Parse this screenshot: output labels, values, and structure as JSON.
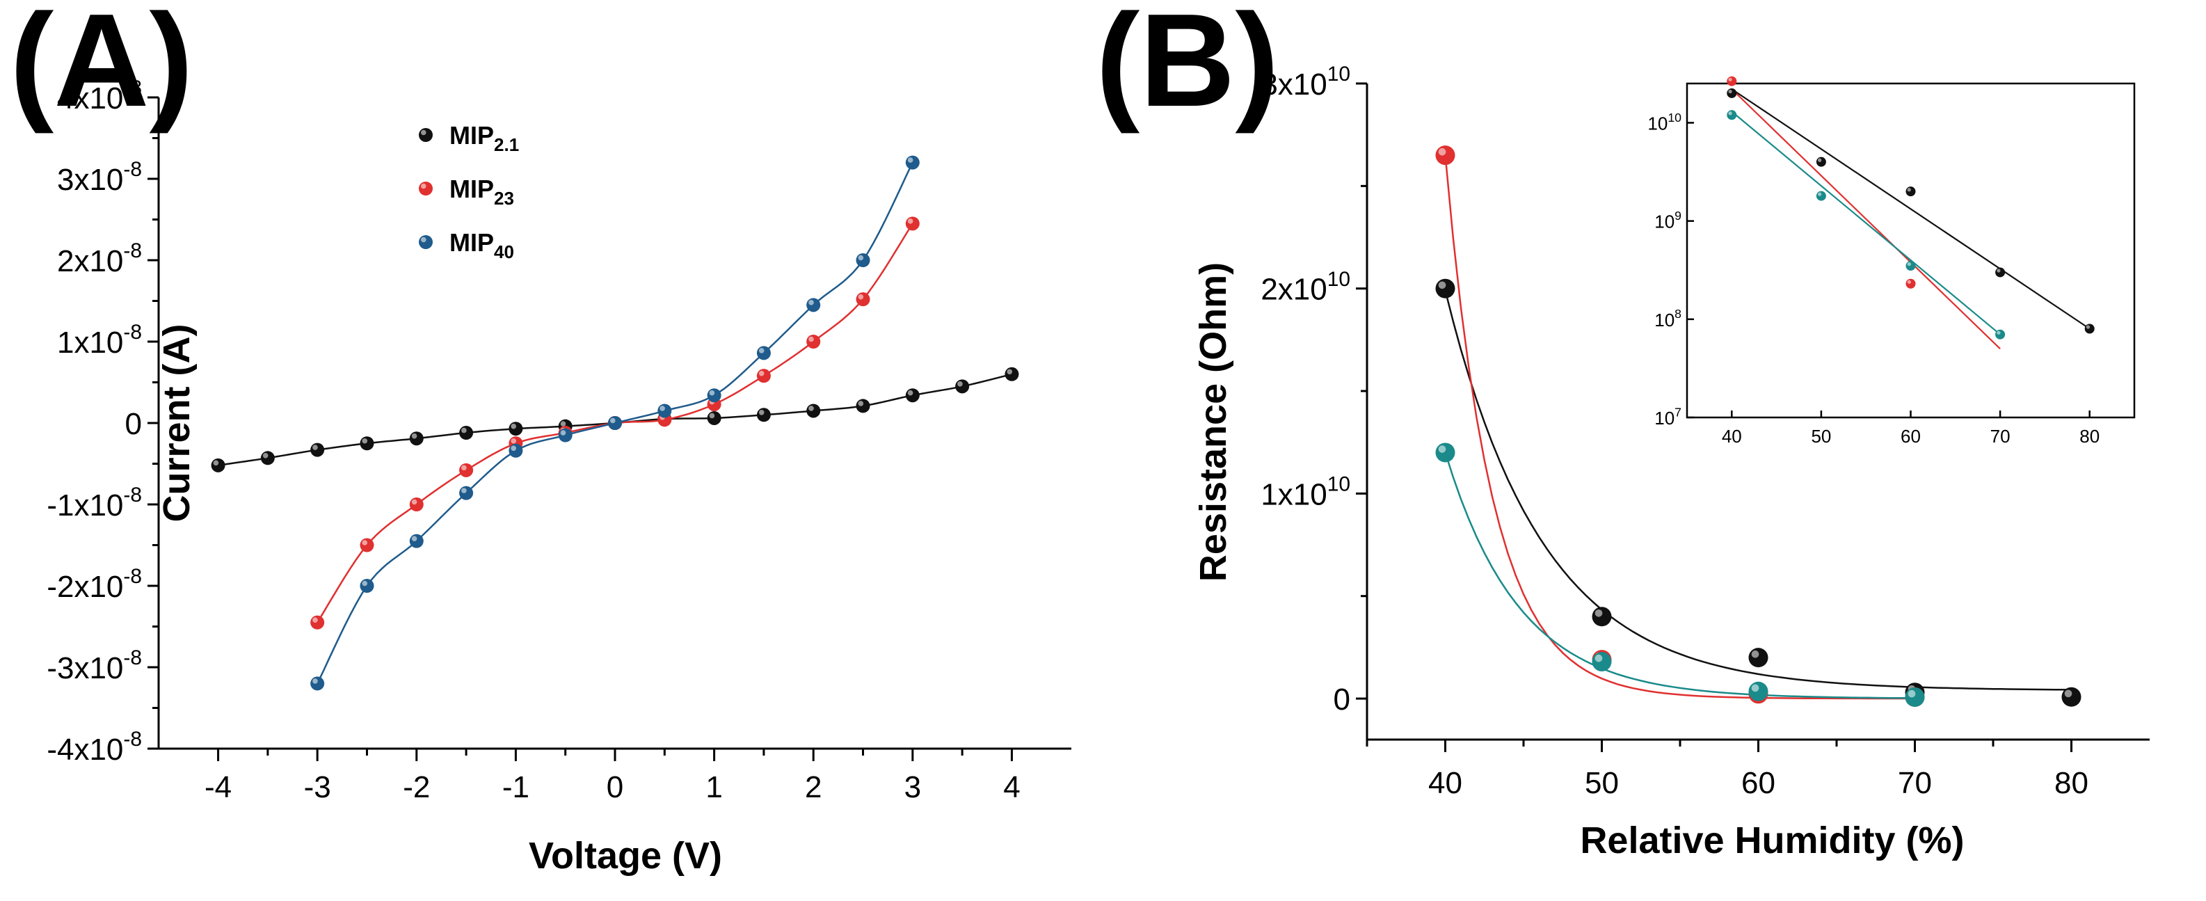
{
  "chart_data": [
    {
      "panel_label": "(A)",
      "type": "scatter",
      "xlabel": "Voltage (V)",
      "ylabel": "Current (A)",
      "xlim": [
        -4.6,
        4.6
      ],
      "ylim": [
        -4e-08,
        4e-08
      ],
      "xticks": [
        -4,
        -3,
        -2,
        -1,
        0,
        1,
        2,
        3,
        4
      ],
      "ytick_labels": [
        {
          "value": 4e-08,
          "mantissa": "4x10",
          "exp": "-8"
        },
        {
          "value": 3e-08,
          "mantissa": "3x10",
          "exp": "-8"
        },
        {
          "value": 2e-08,
          "mantissa": "2x10",
          "exp": "-8"
        },
        {
          "value": 1e-08,
          "mantissa": "1x10",
          "exp": "-8"
        },
        {
          "value": 0,
          "mantissa": "0",
          "exp": ""
        },
        {
          "value": -1e-08,
          "mantissa": "-1x10",
          "exp": "-8"
        },
        {
          "value": -2e-08,
          "mantissa": "-2x10",
          "exp": "-8"
        },
        {
          "value": -3e-08,
          "mantissa": "-3x10",
          "exp": "-8"
        },
        {
          "value": -4e-08,
          "mantissa": "-4x10",
          "exp": "-8"
        }
      ],
      "legend_position": "top-left",
      "series": [
        {
          "name": "MIP2.1",
          "label_base": "MIP",
          "label_sub": "2.1",
          "color": "#111111",
          "x": [
            -4,
            -3.5,
            -3,
            -2.5,
            -2,
            -1.5,
            -1,
            -0.5,
            0,
            0.5,
            1,
            1.5,
            2,
            2.5,
            3,
            3.5,
            4
          ],
          "y": [
            -5.2e-09,
            -4.3e-09,
            -3.3e-09,
            -2.5e-09,
            -1.9e-09,
            -1.2e-09,
            -7e-10,
            -4e-10,
            0,
            5e-10,
            6e-10,
            1e-09,
            1.5e-09,
            2.1e-09,
            3.4e-09,
            4.5e-09,
            6e-09
          ]
        },
        {
          "name": "MIP23",
          "label_base": "MIP",
          "label_sub": "23",
          "color": "#e03030",
          "x": [
            -3,
            -2.5,
            -2,
            -1.5,
            -1,
            -0.5,
            0,
            0.5,
            1,
            1.5,
            2,
            2.5,
            3
          ],
          "y": [
            -2.45e-08,
            -1.5e-08,
            -1e-08,
            -5.8e-09,
            -2.5e-09,
            -1.2e-09,
            0,
            4e-10,
            2.3e-09,
            5.8e-09,
            1e-08,
            1.52e-08,
            2.45e-08
          ]
        },
        {
          "name": "MIP40",
          "label_base": "MIP",
          "label_sub": "40",
          "color": "#1f5b8c",
          "x": [
            -3,
            -2.5,
            -2,
            -1.5,
            -1,
            -0.5,
            0,
            0.5,
            1,
            1.5,
            2,
            2.5,
            3
          ],
          "y": [
            -3.2e-08,
            -2e-08,
            -1.45e-08,
            -8.6e-09,
            -3.4e-09,
            -1.5e-09,
            0,
            1.5e-09,
            3.4e-09,
            8.6e-09,
            1.45e-08,
            2e-08,
            3.2e-08
          ]
        }
      ]
    },
    {
      "panel_label": "(B)",
      "type": "scatter",
      "xlabel": "Relative Humidity (%)",
      "ylabel": "Resistance (Ohm)",
      "xlim": [
        35,
        85
      ],
      "ylim": [
        -2000000000.0,
        30000000000.0
      ],
      "xticks": [
        40,
        50,
        60,
        70,
        80
      ],
      "ytick_labels": [
        {
          "value": 0,
          "mantissa": "0",
          "exp": ""
        },
        {
          "value": 10000000000.0,
          "mantissa": "1x10",
          "exp": "10"
        },
        {
          "value": 20000000000.0,
          "mantissa": "2x10",
          "exp": "10"
        },
        {
          "value": 30000000000.0,
          "mantissa": "3x10",
          "exp": "10"
        }
      ],
      "series": [
        {
          "name": "black",
          "color": "#111111",
          "x": [
            40,
            50,
            60,
            70,
            80
          ],
          "y": [
            20000000000.0,
            4000000000.0,
            2000000000.0,
            300000000.0,
            80000000.0
          ]
        },
        {
          "name": "red",
          "color": "#e03030",
          "x": [
            40,
            50,
            60,
            70
          ],
          "y": [
            26500000000.0,
            1900000000.0,
            230000000.0,
            70000000.0
          ]
        },
        {
          "name": "teal",
          "color": "#1a8a8a",
          "x": [
            40,
            50,
            60,
            70
          ],
          "y": [
            12000000000.0,
            1800000000.0,
            350000000.0,
            70000000.0
          ]
        }
      ],
      "inset": {
        "yscale": "log",
        "xlim": [
          35,
          85
        ],
        "ylim_log10": [
          7,
          10.4
        ],
        "xticks": [
          40,
          50,
          60,
          70,
          80
        ],
        "ytick_labels": [
          {
            "value": 10000000000.0,
            "mantissa": "10",
            "exp": "10"
          },
          {
            "value": 1000000000.0,
            "mantissa": "10",
            "exp": "9"
          },
          {
            "value": 100000000.0,
            "mantissa": "10",
            "exp": "8"
          },
          {
            "value": 10000000.0,
            "mantissa": "10",
            "exp": "7"
          }
        ],
        "series": [
          {
            "name": "black",
            "color": "#111111",
            "x": [
              40,
              50,
              60,
              70,
              80
            ],
            "y": [
              20000000000.0,
              4000000000.0,
              2000000000.0,
              300000000.0,
              80000000.0
            ]
          },
          {
            "name": "red",
            "color": "#e03030",
            "x": [
              40,
              60
            ],
            "y": [
              26500000000.0,
              230000000.0
            ]
          },
          {
            "name": "teal",
            "color": "#1a8a8a",
            "x": [
              40,
              50,
              60,
              70
            ],
            "y": [
              12000000000.0,
              1800000000.0,
              350000000.0,
              70000000.0
            ]
          }
        ]
      }
    }
  ]
}
